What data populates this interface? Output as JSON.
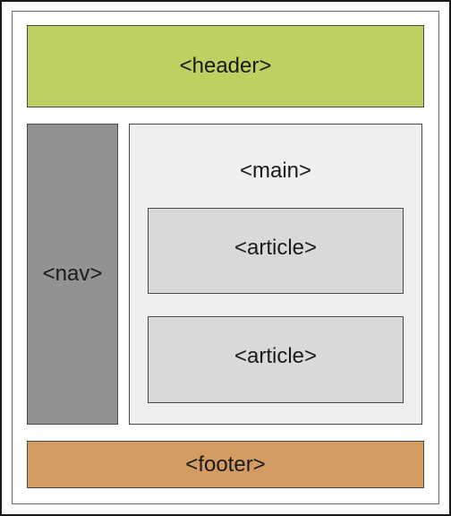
{
  "diagram": {
    "header_label": "<header>",
    "nav_label": "<nav>",
    "main_label": "<main>",
    "articles": [
      "<article>",
      "<article>"
    ],
    "footer_label": "<footer>"
  },
  "colors": {
    "header": "#bfcf62",
    "nav": "#929292",
    "main": "#efefef",
    "article": "#d9d9d9",
    "footer": "#d29c62"
  }
}
